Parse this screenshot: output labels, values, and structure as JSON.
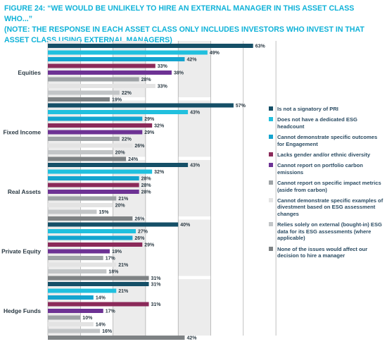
{
  "title": {
    "line1": "FIGURE 24: “WE WOULD BE UNLIKELY TO HIRE AN EXTERNAL MANAGER IN THIS ASSET CLASS WHO...”",
    "line2": "(NOTE: THE RESPONSE IN EACH ASSET CLASS ONLY INCLUDES INVESTORS WHO INVEST IN THAT ASSET CLASS USING EXTERNAL MANAGERS)"
  },
  "chart_data": {
    "type": "bar",
    "orientation": "horizontal",
    "grid": true,
    "legend_position": "right",
    "categories": [
      "Equities",
      "Fixed Income",
      "Real Assets",
      "Private Equity",
      "Hedge Funds"
    ],
    "series": [
      {
        "name": "Is not a signatory of PRI",
        "color": "#154f67",
        "values": [
          63,
          57,
          43,
          40,
          31
        ]
      },
      {
        "name": "Does not have a dedicated ESG headcount",
        "color": "#21c0de",
        "values": [
          49,
          43,
          32,
          27,
          21
        ]
      },
      {
        "name": "Cannot demonstrate specific outcomes for Engagement",
        "color": "#14a4cf",
        "values": [
          42,
          29,
          28,
          26,
          14
        ]
      },
      {
        "name": "Lacks gender and/or ethnic diversity",
        "color": "#8b2a5a",
        "values": [
          33,
          32,
          28,
          29,
          31
        ]
      },
      {
        "name": "Cannot report on portfolio carbon emissions",
        "color": "#6d3294",
        "values": [
          38,
          29,
          28,
          19,
          17
        ]
      },
      {
        "name": "Cannot report on specific impact metrics (aside from carbon)",
        "color": "#9ea3a6",
        "values": [
          28,
          22,
          21,
          17,
          10
        ]
      },
      {
        "name": "Cannot demonstrate specific examples of divestment based on ESG assessment changes",
        "color": "#e3e3e3",
        "values": [
          33,
          26,
          20,
          21,
          14
        ]
      },
      {
        "name": "Relies solely on external (bought-in) ESG data for its ESG assessments (where applicable)",
        "color": "#c2c5c7",
        "values": [
          22,
          20,
          15,
          18,
          16
        ]
      },
      {
        "name": "None of the issues would affect our decision to hire a manager",
        "color": "#7e8284",
        "values": [
          19,
          24,
          26,
          31,
          42
        ]
      }
    ],
    "legend": [
      {
        "label": "Is not a signatory of PRI",
        "color": "#154f67"
      },
      {
        "label": "Does not have a dedicated ESG headcount",
        "color": "#21c0de"
      },
      {
        "label": "Cannot demonstrate specific outcomes for Engagement",
        "color": "#14a4cf"
      },
      {
        "label": "Lacks gender and/or ethnic diversity",
        "color": "#8b2a5a"
      },
      {
        "label": "Cannot report on portfolio carbon emissions",
        "color": "#6d3294"
      },
      {
        "label": "Cannot report on specific impact metrics (aside from carbon)",
        "color": "#9ea3a6"
      },
      {
        "label": "Cannot demonstrate specific examples of divestment based on ESG assessment changes",
        "color": "#e3e3e3"
      },
      {
        "label": "Relies solely on external (bought-in) ESG data for its ESG assessments (where applicable)",
        "color": "#c2c5c7"
      },
      {
        "label": "None of the issues would affect our decision to hire a manager",
        "color": "#7e8284"
      }
    ]
  }
}
